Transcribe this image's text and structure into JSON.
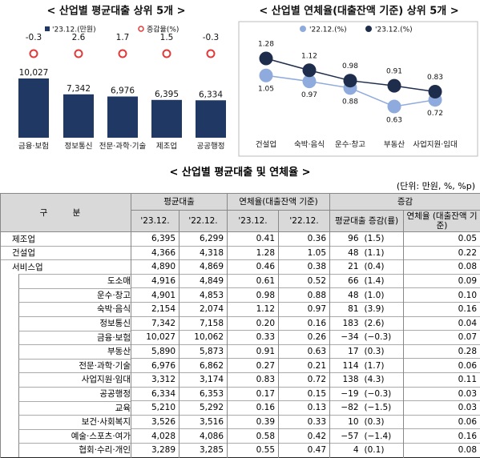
{
  "chart_data": [
    {
      "type": "bar",
      "title": "< 산업별 평균대출 상위 5개 >",
      "categories": [
        "금융·보험",
        "정보통신",
        "전문·과학·기술",
        "제조업",
        "공공행정"
      ],
      "series": [
        {
          "name": "'23.12.(만원)",
          "color": "#1f3864",
          "values": [
            10027,
            7342,
            6976,
            6395,
            6334
          ],
          "value_labels": [
            "10,027",
            "7,342",
            "6,976",
            "6,395",
            "6,334"
          ]
        },
        {
          "name": "증감율(%)",
          "color": "#e03a3a",
          "values": [
            -0.3,
            2.6,
            1.7,
            1.5,
            -0.3
          ]
        }
      ]
    },
    {
      "type": "line",
      "title": "< 산업별 연체율(대출잔액 기준) 상위 5개 >",
      "categories": [
        "건설업",
        "숙박·음식",
        "운수·창고",
        "부동산",
        "사업지원·임대"
      ],
      "series": [
        {
          "name": "'22.12.(%)",
          "color": "#8faadc",
          "values": [
            1.05,
            0.97,
            0.88,
            0.63,
            0.72
          ]
        },
        {
          "name": "'23.12.(%)",
          "color": "#1f2d4d",
          "values": [
            1.28,
            1.12,
            0.98,
            0.91,
            0.83
          ]
        }
      ]
    }
  ],
  "table": {
    "title": "< 산업별 평균대출 및 연체율 >",
    "unit": "(단위: 만원, %, %p)",
    "header": {
      "group": "구 분",
      "avg": "평균대출",
      "del": "연체율(대출잔액 기준)",
      "chg": "증감",
      "sub": [
        "'23.12.",
        "'22.12.",
        "'23.12.",
        "'22.12.",
        "평균대출 증감(률)",
        "연체율 (대출잔액 기준)"
      ]
    },
    "rows": [
      {
        "cells": [
          "제조업",
          "6,395",
          "6,299",
          "0.41",
          "0.36",
          "96",
          "(1.5)",
          "0.05"
        ]
      },
      {
        "cells": [
          "건설업",
          "4,366",
          "4,318",
          "1.28",
          "1.05",
          "48",
          "(1.1)",
          "0.22"
        ]
      },
      {
        "cells": [
          "서비스업",
          "4,890",
          "4,869",
          "0.46",
          "0.38",
          "21",
          "(0.4)",
          "0.08"
        ],
        "children": [
          [
            "도소매",
            "4,916",
            "4,849",
            "0.61",
            "0.52",
            "66",
            "(1.4)",
            "0.09"
          ],
          [
            "운수·창고",
            "4,901",
            "4,853",
            "0.98",
            "0.88",
            "48",
            "(1.0)",
            "0.10"
          ],
          [
            "숙박·음식",
            "2,154",
            "2,074",
            "1.12",
            "0.97",
            "81",
            "(3.9)",
            "0.16"
          ],
          [
            "정보통신",
            "7,342",
            "7,158",
            "0.20",
            "0.16",
            "183",
            "(2.6)",
            "0.04"
          ],
          [
            "금융·보험",
            "10,027",
            "10,062",
            "0.33",
            "0.26",
            "−34",
            "(−0.3)",
            "0.07"
          ],
          [
            "부동산",
            "5,890",
            "5,873",
            "0.91",
            "0.63",
            "17",
            "(0.3)",
            "0.28"
          ],
          [
            "전문·과학·기술",
            "6,976",
            "6,862",
            "0.27",
            "0.21",
            "114",
            "(1.7)",
            "0.06"
          ],
          [
            "사업지원·임대",
            "3,312",
            "3,174",
            "0.83",
            "0.72",
            "138",
            "(4.3)",
            "0.11"
          ],
          [
            "공공행정",
            "6,334",
            "6,353",
            "0.17",
            "0.15",
            "−19",
            "(−0.3)",
            "0.03"
          ],
          [
            "교육",
            "5,210",
            "5,292",
            "0.16",
            "0.13",
            "−82",
            "(−1.5)",
            "0.03"
          ],
          [
            "보건·사회복지",
            "3,526",
            "3,516",
            "0.39",
            "0.33",
            "10",
            "(0.3)",
            "0.06"
          ],
          [
            "예술·스포츠·여가",
            "4,028",
            "4,086",
            "0.58",
            "0.42",
            "−57",
            "(−1.4)",
            "0.16"
          ],
          [
            "협회·수리·개인",
            "3,289",
            "3,285",
            "0.55",
            "0.47",
            "4",
            "(0.1)",
            "0.08"
          ]
        ]
      }
    ]
  }
}
